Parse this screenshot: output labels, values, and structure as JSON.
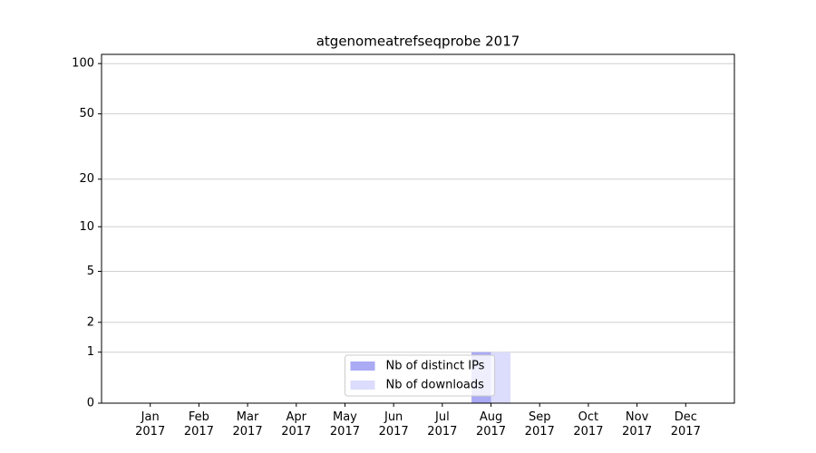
{
  "chart_data": {
    "type": "bar",
    "title": "atgenomeatrefseqprobe 2017",
    "categories": [
      "Jan\n2017",
      "Feb\n2017",
      "Mar\n2017",
      "Apr\n2017",
      "May\n2017",
      "Jun\n2017",
      "Jul\n2017",
      "Aug\n2017",
      "Sep\n2017",
      "Oct\n2017",
      "Nov\n2017",
      "Dec\n2017"
    ],
    "series": [
      {
        "name": "Nb of distinct IPs",
        "color": "#aaaaf5",
        "values": [
          0,
          0,
          0,
          0,
          0,
          0,
          0,
          1,
          0,
          0,
          0,
          0
        ]
      },
      {
        "name": "Nb of downloads",
        "color": "#dcdcfc",
        "values": [
          0,
          0,
          0,
          0,
          0,
          0,
          0,
          1,
          0,
          0,
          0,
          0
        ]
      }
    ],
    "yscale": "log1p",
    "ylim": [
      0,
      113.5
    ],
    "yticks": [
      0,
      1,
      2,
      5,
      10,
      20,
      50,
      100
    ],
    "grid": true,
    "legend": "lower center"
  }
}
